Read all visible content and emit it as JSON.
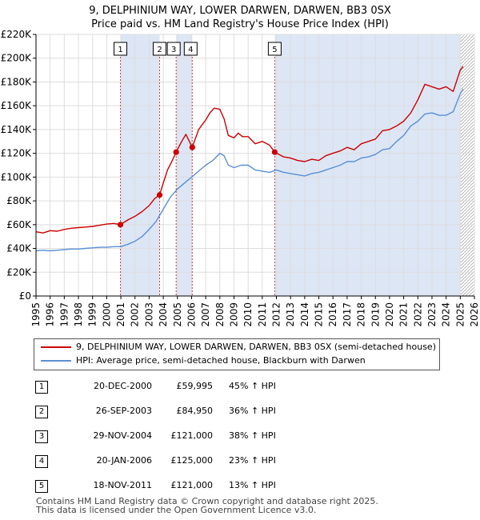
{
  "title_line1": "9, DELPHINIUM WAY, LOWER DARWEN, DARWEN, BB3 0SX",
  "title_line2": "Price paid vs. HM Land Registry's House Price Index (HPI)",
  "colors": {
    "property": "#cc0000",
    "hpi": "#5b8fd4",
    "shade": "#dde6f5",
    "hatch": "#aaaaaa",
    "grid": "#dddddd",
    "marker_line": "#d04040"
  },
  "chart_data": {
    "type": "line",
    "title": "Price paid vs. HM Land Registry's House Price Index (HPI)",
    "xlabel": "",
    "ylabel": "",
    "xlim": [
      1995,
      2026
    ],
    "ylim": [
      0,
      220000
    ],
    "x_ticks": [
      "1995",
      "1996",
      "1997",
      "1998",
      "1999",
      "2000",
      "2001",
      "2002",
      "2003",
      "2004",
      "2005",
      "2006",
      "2007",
      "2008",
      "2009",
      "2010",
      "2011",
      "2012",
      "2013",
      "2014",
      "2015",
      "2016",
      "2017",
      "2018",
      "2019",
      "2020",
      "2021",
      "2022",
      "2023",
      "2024",
      "2025",
      "2026"
    ],
    "y_ticks": [
      {
        "value": 0,
        "label": "£0"
      },
      {
        "value": 20000,
        "label": "£20K"
      },
      {
        "value": 40000,
        "label": "£40K"
      },
      {
        "value": 60000,
        "label": "£60K"
      },
      {
        "value": 80000,
        "label": "£80K"
      },
      {
        "value": 100000,
        "label": "£100K"
      },
      {
        "value": 120000,
        "label": "£120K"
      },
      {
        "value": 140000,
        "label": "£140K"
      },
      {
        "value": 160000,
        "label": "£160K"
      },
      {
        "value": 180000,
        "label": "£180K"
      },
      {
        "value": 200000,
        "label": "£200K"
      },
      {
        "value": 220000,
        "label": "£220K"
      }
    ],
    "grid": true,
    "series": [
      {
        "name": "9, DELPHINIUM WAY, LOWER DARWEN, DARWEN, BB3 0SX (semi-detached house)",
        "x": [
          1995.0,
          1995.5,
          1996.0,
          1996.5,
          1997.0,
          1997.5,
          1998.0,
          1998.5,
          1999.0,
          1999.5,
          2000.0,
          2000.5,
          2000.97,
          2001.5,
          2002.0,
          2002.5,
          2003.0,
          2003.4,
          2003.74,
          2004.0,
          2004.3,
          2004.6,
          2004.91,
          2005.3,
          2005.6,
          2006.05,
          2006.5,
          2007.0,
          2007.3,
          2007.6,
          2008.0,
          2008.3,
          2008.6,
          2009.0,
          2009.3,
          2009.6,
          2010.0,
          2010.5,
          2011.0,
          2011.5,
          2011.88,
          2012.5,
          2013.0,
          2013.5,
          2014.0,
          2014.5,
          2015.0,
          2015.5,
          2016.0,
          2016.5,
          2017.0,
          2017.5,
          2018.0,
          2018.5,
          2019.0,
          2019.5,
          2020.0,
          2020.5,
          2021.0,
          2021.5,
          2022.0,
          2022.5,
          2023.0,
          2023.5,
          2024.0,
          2024.5,
          2025.0,
          2025.2
        ],
        "values": [
          54000,
          53000,
          55000,
          54500,
          56000,
          57000,
          57500,
          58000,
          58500,
          59500,
          60500,
          61000,
          59995,
          64000,
          67000,
          71000,
          76000,
          82000,
          84950,
          95000,
          106000,
          113000,
          121000,
          130000,
          136000,
          125000,
          140000,
          148000,
          154000,
          158000,
          157000,
          149000,
          135000,
          133000,
          137000,
          134000,
          134000,
          128000,
          130000,
          127000,
          121000,
          117000,
          116000,
          114000,
          113000,
          115000,
          114000,
          118000,
          120000,
          122000,
          125000,
          123000,
          128000,
          130000,
          132000,
          139000,
          140000,
          143000,
          147000,
          154000,
          165000,
          178000,
          176000,
          174000,
          176000,
          172000,
          190000,
          193000
        ]
      },
      {
        "name": "HPI: Average price, semi-detached house, Blackburn with Darwen",
        "x": [
          1995.0,
          1995.5,
          1996.0,
          1996.5,
          1997.0,
          1997.5,
          1998.0,
          1998.5,
          1999.0,
          1999.5,
          2000.0,
          2000.5,
          2001.0,
          2001.5,
          2002.0,
          2002.5,
          2003.0,
          2003.5,
          2004.0,
          2004.5,
          2005.0,
          2005.5,
          2006.0,
          2006.5,
          2007.0,
          2007.5,
          2008.0,
          2008.3,
          2008.6,
          2009.0,
          2009.5,
          2010.0,
          2010.5,
          2011.0,
          2011.5,
          2012.0,
          2012.5,
          2013.0,
          2013.5,
          2014.0,
          2014.5,
          2015.0,
          2015.5,
          2016.0,
          2016.5,
          2017.0,
          2017.5,
          2018.0,
          2018.5,
          2019.0,
          2019.5,
          2020.0,
          2020.5,
          2021.0,
          2021.5,
          2022.0,
          2022.5,
          2023.0,
          2023.5,
          2024.0,
          2024.5,
          2025.0,
          2025.2
        ],
        "values": [
          38000,
          38500,
          38000,
          38500,
          39000,
          39500,
          39500,
          40000,
          40500,
          41000,
          41000,
          41500,
          41500,
          43500,
          46000,
          50000,
          56000,
          63000,
          73000,
          83000,
          90000,
          95000,
          100000,
          105000,
          110000,
          114000,
          120000,
          118000,
          110000,
          108000,
          110000,
          110000,
          106000,
          105000,
          104000,
          106000,
          104000,
          103000,
          102000,
          101000,
          103000,
          104000,
          106000,
          108000,
          110000,
          113000,
          113000,
          116000,
          117000,
          119000,
          123000,
          124000,
          130000,
          135000,
          143000,
          147000,
          153000,
          154000,
          152000,
          152000,
          155000,
          170000,
          174000
        ]
      }
    ],
    "sales": [
      {
        "id": "1",
        "date": "20-DEC-2000",
        "x": 2000.97,
        "price": 59995,
        "price_label": "£59,995",
        "hpi_label": "45% ↑ HPI"
      },
      {
        "id": "2",
        "date": "26-SEP-2003",
        "x": 2003.74,
        "price": 84950,
        "price_label": "£84,950",
        "hpi_label": "36% ↑ HPI"
      },
      {
        "id": "3",
        "date": "29-NOV-2004",
        "x": 2004.91,
        "price": 121000,
        "price_label": "£121,000",
        "hpi_label": "38% ↑ HPI"
      },
      {
        "id": "4",
        "date": "20-JAN-2006",
        "x": 2006.05,
        "price": 125000,
        "price_label": "£125,000",
        "hpi_label": "23% ↑ HPI"
      },
      {
        "id": "5",
        "date": "18-NOV-2011",
        "x": 2011.88,
        "price": 121000,
        "price_label": "£121,000",
        "hpi_label": "13% ↑ HPI"
      }
    ],
    "shaded_periods": [
      [
        2000.97,
        2003.74
      ],
      [
        2004.91,
        2006.05
      ],
      [
        2011.88,
        2025.0
      ]
    ],
    "hatched_from": 2025.0
  },
  "legend": {
    "items": [
      {
        "label": "9, DELPHINIUM WAY, LOWER DARWEN, DARWEN, BB3 0SX (semi-detached house)"
      },
      {
        "label": "HPI: Average price, semi-detached house, Blackburn with Darwen"
      }
    ]
  },
  "footer": {
    "line1": "Contains HM Land Registry data © Crown copyright and database right 2025.",
    "line2": "This data is licensed under the Open Government Licence v3.0."
  }
}
